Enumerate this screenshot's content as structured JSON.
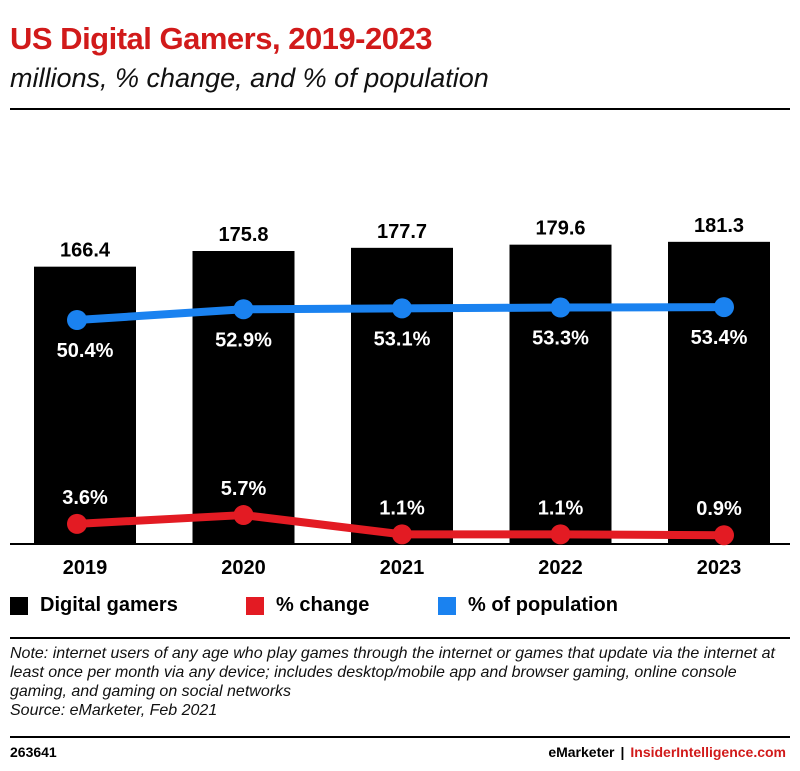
{
  "header": {
    "title": "US Digital Gamers, 2019-2023",
    "subtitle": "millions, % change, and % of population"
  },
  "chart_data": {
    "type": "bar",
    "title": "US Digital Gamers, 2019-2023",
    "subtitle": "millions, % change, and % of population",
    "categories": [
      "2019",
      "2020",
      "2021",
      "2022",
      "2023"
    ],
    "series": [
      {
        "name": "Digital gamers",
        "kind": "bar",
        "color": "#000000",
        "values": [
          166.4,
          175.8,
          177.7,
          179.6,
          181.3
        ],
        "labels": [
          "166.4",
          "175.8",
          "177.7",
          "179.6",
          "181.3"
        ]
      },
      {
        "name": "% change",
        "kind": "line",
        "color": "#e31b23",
        "values": [
          3.6,
          5.7,
          1.1,
          1.1,
          0.9
        ],
        "labels": [
          "3.6%",
          "5.7%",
          "1.1%",
          "1.1%",
          "0.9%"
        ]
      },
      {
        "name": "% of population",
        "kind": "line",
        "color": "#1a82f0",
        "values": [
          50.4,
          52.9,
          53.1,
          53.3,
          53.4
        ],
        "labels": [
          "50.4%",
          "52.9%",
          "53.1%",
          "53.3%",
          "53.4%"
        ]
      }
    ],
    "legend_position": "bottom",
    "grid": false
  },
  "legend": {
    "items": [
      {
        "label": "Digital gamers",
        "color": "#000000"
      },
      {
        "label": "% change",
        "color": "#e31b23"
      },
      {
        "label": "% of population",
        "color": "#1a82f0"
      }
    ]
  },
  "note": {
    "text": "Note: internet users of any age who play games through the internet or games that update via the internet at least once per month via any device; includes desktop/mobile app and browser gaming, online console gaming, and gaming on social networks",
    "source": "Source: eMarketer, Feb 2021"
  },
  "footer": {
    "chart_id": "263641",
    "brand_primary": "eMarketer",
    "separator": "|",
    "brand_secondary": "InsiderIntelligence.com"
  }
}
